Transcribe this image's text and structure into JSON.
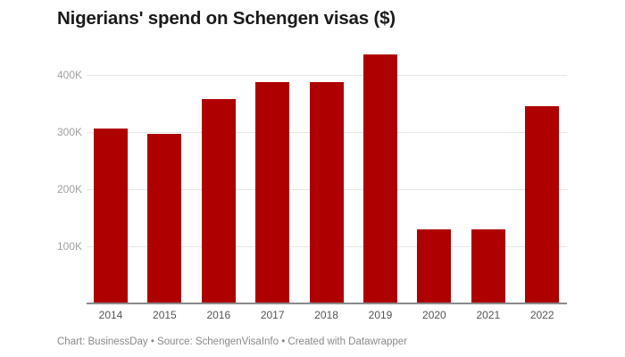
{
  "chart_data": {
    "type": "bar",
    "title": "Nigerians' spend on Schengen visas ($)",
    "xlabel": "",
    "ylabel": "",
    "categories": [
      "2014",
      "2015",
      "2016",
      "2017",
      "2018",
      "2019",
      "2020",
      "2021",
      "2022"
    ],
    "values": [
      306000,
      297000,
      358000,
      387000,
      387000,
      436000,
      130000,
      130000,
      345000
    ],
    "ylim": [
      0,
      450000
    ],
    "yticks": [
      100000,
      200000,
      300000,
      400000
    ],
    "ytick_labels": [
      "100K",
      "200K",
      "300K",
      "400K"
    ],
    "grid": true,
    "bar_color": "#af0000"
  },
  "header": {
    "title": "Nigerians' spend on Schengen visas ($)"
  },
  "footer": {
    "text": "Chart: BusinessDay • Source: SchengenVisaInfo • Created with Datawrapper"
  }
}
